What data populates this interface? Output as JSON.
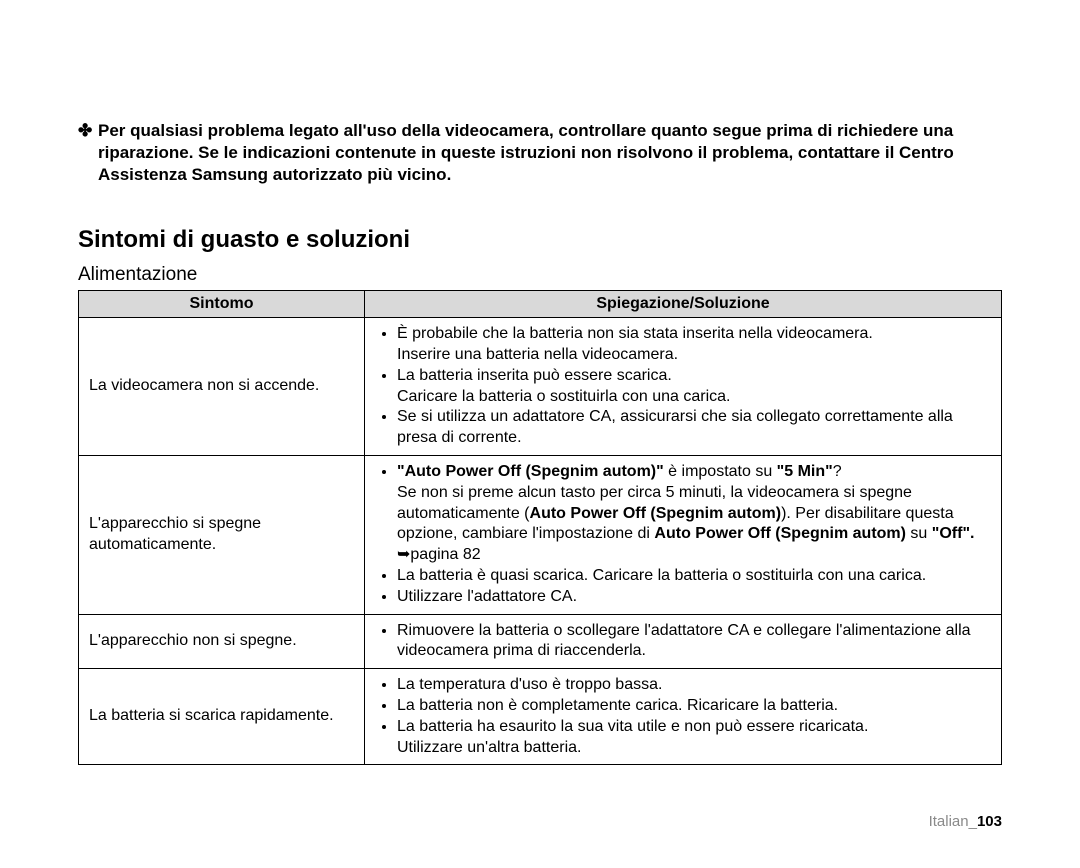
{
  "intro": {
    "bullet": "✤",
    "text": "Per qualsiasi problema legato all'uso della videocamera, controllare quanto segue prima di richiedere una riparazione. Se le indicazioni contenute in queste istruzioni non risolvono il problema, contattare il Centro Assistenza Samsung autorizzato più vicino."
  },
  "section_title": "Sintomi di guasto e soluzioni",
  "subsection_title": "Alimentazione",
  "table": {
    "headers": {
      "col1": "Sintomo",
      "col2": "Spiegazione/Soluzione"
    },
    "rows": [
      {
        "sintomo": "La videocamera non si accende.",
        "items": [
          {
            "line": "È probabile che la batteria non sia stata inserita nella videocamera.",
            "sub": "Inserire una batteria nella videocamera."
          },
          {
            "line": "La batteria inserita può essere scarica.",
            "sub": "Caricare la batteria o sostituirla con una carica."
          },
          {
            "line": "Se si utilizza un adattatore CA, assicurarsi che sia collegato correttamente alla presa di corrente."
          }
        ]
      },
      {
        "sintomo": "L'apparecchio si spegne automaticamente.",
        "items_html": [
          "<b>\"Auto Power Off (Spegnim autom)\"</b> è impostato su <b>\"5 Min\"</b>?<br>Se non si preme alcun tasto per circa 5 minuti, la videocamera si spegne automaticamente (<b>Auto Power Off (Spegnim autom)</b>). Per disabilitare questa opzione, cambiare l'impostazione di <b>Auto Power Off (Spegnim autom)</b> su <b>\"Off\".</b> ➥pagina 82",
          "La batteria è quasi scarica. Caricare la batteria o sostituirla con una carica.",
          "Utilizzare l'adattatore CA."
        ]
      },
      {
        "sintomo": "L'apparecchio non si spegne.",
        "items": [
          {
            "line": "Rimuovere la batteria o scollegare l'adattatore CA e collegare l'alimentazione alla videocamera prima di riaccenderla."
          }
        ]
      },
      {
        "sintomo": "La batteria si scarica rapidamente.",
        "items": [
          {
            "line": "La temperatura d'uso è troppo bassa."
          },
          {
            "line": "La batteria non è completamente carica. Ricaricare la batteria."
          },
          {
            "line": "La batteria ha esaurito la sua vita utile e non può essere ricaricata.",
            "sub": "Utilizzare un'altra batteria."
          }
        ]
      }
    ]
  },
  "footer": {
    "lang": "Italian_",
    "page": "103"
  }
}
